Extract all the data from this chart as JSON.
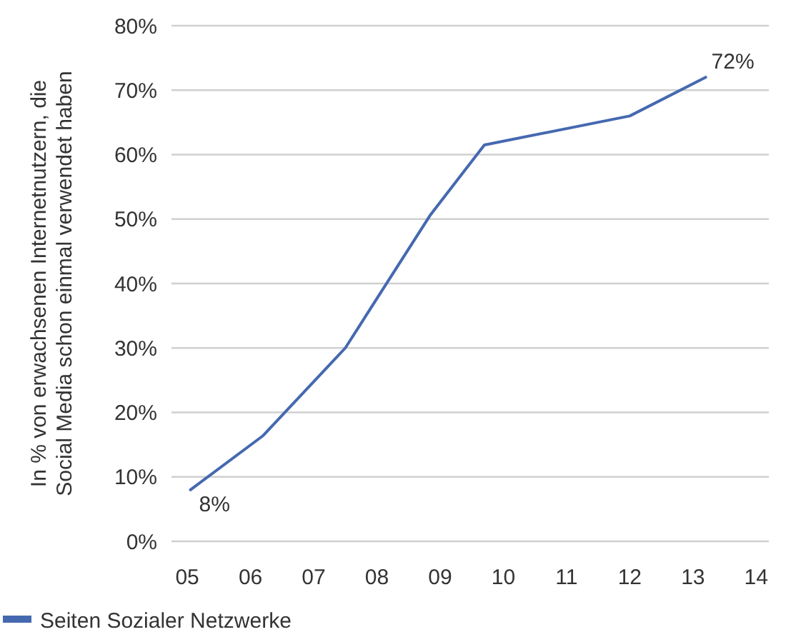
{
  "chart_data": {
    "type": "line",
    "ylabel": "In % von erwachsenen Internetnutzern, die\nSocial Media schon einmal verwendet haben",
    "x": [
      5.05,
      6.2,
      7.5,
      8.85,
      9.7,
      12,
      13.2
    ],
    "series": [
      {
        "name": "Seiten Sozialer Netzwerke",
        "color": "#4569b0",
        "values": [
          8,
          16.4,
          30,
          50.7,
          61.5,
          66,
          72
        ],
        "value_labels": [
          "8%",
          null,
          null,
          null,
          null,
          null,
          "72%"
        ]
      }
    ],
    "xlim": [
      4.75,
      14.2
    ],
    "xticks": [
      {
        "value": 5,
        "label": "05"
      },
      {
        "value": 6,
        "label": "06"
      },
      {
        "value": 7,
        "label": "07"
      },
      {
        "value": 8,
        "label": "08"
      },
      {
        "value": 9,
        "label": "09"
      },
      {
        "value": 10,
        "label": "10"
      },
      {
        "value": 11,
        "label": "11"
      },
      {
        "value": 12,
        "label": "12"
      },
      {
        "value": 13,
        "label": "13"
      },
      {
        "value": 14,
        "label": "14"
      }
    ],
    "ylim": [
      0,
      80
    ],
    "yticks": [
      {
        "value": 0,
        "label": "0%"
      },
      {
        "value": 10,
        "label": "10%"
      },
      {
        "value": 20,
        "label": "20%"
      },
      {
        "value": 30,
        "label": "30%"
      },
      {
        "value": 40,
        "label": "40%"
      },
      {
        "value": 50,
        "label": "50%"
      },
      {
        "value": 60,
        "label": "60%"
      },
      {
        "value": 70,
        "label": "70%"
      },
      {
        "value": 80,
        "label": "80%"
      }
    ],
    "grid": "y",
    "legend": "bottom left",
    "marker": "none",
    "line_style": "solid"
  }
}
